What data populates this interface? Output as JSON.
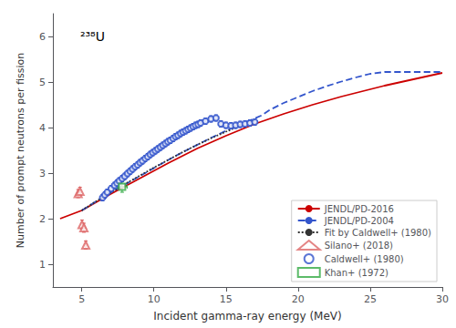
{
  "chart_data": {
    "type": "line",
    "xlabel": "Incident gamma-ray energy (MeV)",
    "ylabel": "Number of prompt neutrons per fission",
    "xlim": [
      3,
      30
    ],
    "ylim": [
      0.5,
      6.5
    ],
    "xticks": [
      5,
      10,
      15,
      20,
      25,
      30
    ],
    "yticks": [
      1,
      2,
      3,
      4,
      5,
      6
    ],
    "grid": false,
    "legend": "lower right",
    "annotations": [
      {
        "text": "²³⁸U"
      }
    ],
    "series": [
      {
        "name": "JENDL/PD-2016",
        "type": "line",
        "color": "#cc0000",
        "line_style": "solid",
        "x": [
          3.5,
          5.0,
          6.0,
          7.0,
          8.0,
          9.0,
          10.0,
          11.0,
          12.0,
          13.0,
          14.0,
          15.0,
          16.0,
          17.0,
          18.0,
          19.0,
          20.0,
          21.0,
          22.0,
          23.0,
          24.0,
          25.0,
          26.0,
          27.0,
          28.0,
          29.0,
          30.0
        ],
        "values": [
          2.0,
          2.18,
          2.36,
          2.54,
          2.71,
          2.88,
          3.05,
          3.22,
          3.38,
          3.54,
          3.68,
          3.82,
          3.95,
          4.08,
          4.19,
          4.3,
          4.4,
          4.5,
          4.59,
          4.68,
          4.76,
          4.84,
          4.92,
          4.99,
          5.06,
          5.13,
          5.2
        ]
      },
      {
        "name": "JENDL/PD-2004",
        "type": "line",
        "color": "#3355cc",
        "line_style": "dashed",
        "x": [
          5.0,
          6.0,
          7.0,
          8.0,
          9.0,
          10.0,
          11.0,
          12.0,
          13.0,
          14.0,
          15.0,
          16.0,
          17.0,
          17.5,
          18.0,
          19.0,
          20.0,
          21.0,
          22.0,
          23.0,
          24.0,
          25.0,
          26.0,
          27.0,
          28.0,
          29.0,
          30.0
        ],
        "values": [
          2.18,
          2.38,
          2.57,
          2.75,
          2.93,
          3.11,
          3.29,
          3.46,
          3.62,
          3.78,
          3.93,
          4.07,
          4.2,
          4.27,
          4.38,
          4.54,
          4.67,
          4.8,
          4.91,
          5.01,
          5.1,
          5.18,
          5.22,
          5.22,
          5.22,
          5.22,
          5.22
        ]
      },
      {
        "name": "Fit by Caldwell+ (1980)",
        "type": "line",
        "color": "#333333",
        "line_style": "dotted",
        "x": [
          5.0,
          6.0,
          7.0,
          8.0,
          9.0,
          10.0,
          11.0,
          12.0,
          13.0,
          14.0,
          15.0,
          16.0,
          17.0
        ],
        "values": [
          2.18,
          2.38,
          2.57,
          2.76,
          2.94,
          3.12,
          3.29,
          3.46,
          3.62,
          3.77,
          3.91,
          4.04,
          4.16
        ]
      },
      {
        "name": "Silano+ (2018)",
        "type": "scatter",
        "color": "#dd6666",
        "marker": "triangle",
        "x": [
          4.75,
          4.88,
          5.02,
          5.15,
          5.28
        ],
        "values": [
          2.55,
          2.6,
          1.87,
          1.8,
          1.42
        ],
        "yerr": [
          0.09,
          0.09,
          0.1,
          0.1,
          0.09
        ],
        "xerr": [
          0.06,
          0.06,
          0.06,
          0.06,
          0.06
        ]
      },
      {
        "name": "Caldwell+ (1980)",
        "type": "scatter",
        "color": "#3355cc",
        "marker": "circle",
        "x": [
          6.44,
          6.6,
          6.77,
          7.04,
          7.27,
          7.44,
          7.6,
          7.8,
          7.98,
          8.17,
          8.35,
          8.52,
          8.7,
          8.87,
          9.04,
          9.21,
          9.4,
          9.57,
          9.75,
          9.92,
          10.1,
          10.27,
          10.45,
          10.62,
          10.8,
          10.97,
          11.14,
          11.33,
          11.5,
          11.67,
          11.85,
          12.02,
          12.2,
          12.37,
          12.54,
          12.72,
          12.89,
          13.07,
          13.24,
          13.58,
          13.96,
          14.31,
          14.65,
          15.0,
          15.35,
          15.67,
          15.99,
          16.32,
          16.66,
          17.0
        ],
        "values": [
          2.46,
          2.52,
          2.58,
          2.66,
          2.73,
          2.78,
          2.83,
          2.88,
          2.93,
          2.99,
          3.04,
          3.09,
          3.14,
          3.18,
          3.23,
          3.27,
          3.32,
          3.36,
          3.41,
          3.45,
          3.49,
          3.53,
          3.57,
          3.61,
          3.65,
          3.69,
          3.72,
          3.76,
          3.8,
          3.83,
          3.87,
          3.9,
          3.93,
          3.96,
          3.99,
          4.02,
          4.05,
          4.07,
          4.1,
          4.14,
          4.19,
          4.21,
          4.08,
          4.05,
          4.04,
          4.05,
          4.07,
          4.08,
          4.1,
          4.12
        ],
        "yerr": [
          0.07,
          0.07,
          0.07,
          0.07,
          0.07,
          0.07,
          0.07,
          0.07,
          0.07,
          0.07,
          0.07,
          0.07,
          0.07,
          0.07,
          0.07,
          0.07,
          0.07,
          0.07,
          0.07,
          0.07,
          0.07,
          0.07,
          0.07,
          0.07,
          0.07,
          0.07,
          0.07,
          0.07,
          0.07,
          0.07,
          0.07,
          0.07,
          0.07,
          0.07,
          0.07,
          0.07,
          0.07,
          0.07,
          0.07,
          0.07,
          0.07,
          0.07,
          0.07,
          0.07,
          0.07,
          0.07,
          0.07,
          0.07,
          0.07,
          0.07
        ],
        "xerr": [
          0.18,
          0.18,
          0.18,
          0.18,
          0.18,
          0.18,
          0.18,
          0.18,
          0.18,
          0.18,
          0.18,
          0.18,
          0.18,
          0.18,
          0.18,
          0.18,
          0.18,
          0.18,
          0.18,
          0.18,
          0.18,
          0.18,
          0.18,
          0.18,
          0.18,
          0.18,
          0.18,
          0.18,
          0.18,
          0.18,
          0.18,
          0.18,
          0.18,
          0.18,
          0.18,
          0.18,
          0.18,
          0.18,
          0.18,
          0.18,
          0.18,
          0.18,
          0.18,
          0.18,
          0.18,
          0.18,
          0.18,
          0.18,
          0.18,
          0.18
        ]
      },
      {
        "name": "Khan+ (1972)",
        "type": "scatter",
        "color": "#33aa44",
        "marker": "square",
        "x": [
          7.8
        ],
        "values": [
          2.7
        ],
        "yerr": [
          0.12
        ],
        "xerr": [
          0.35
        ]
      }
    ]
  }
}
